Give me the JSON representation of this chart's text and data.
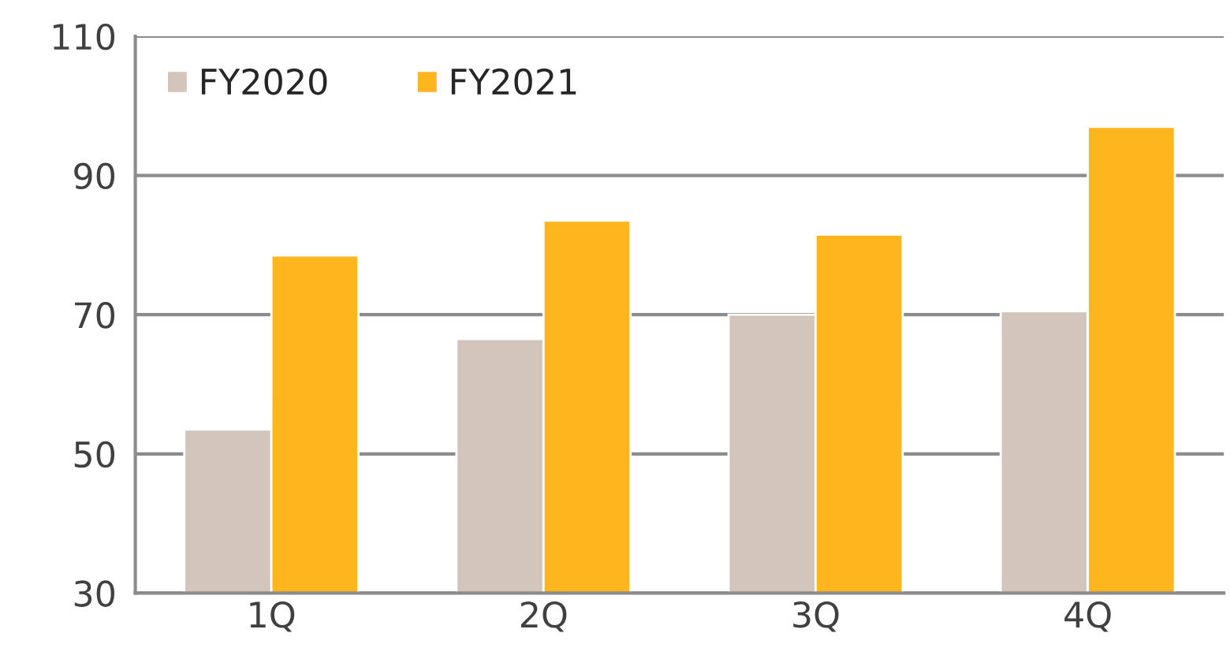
{
  "chart_data": {
    "type": "bar",
    "categories": [
      "1Q",
      "2Q",
      "3Q",
      "4Q"
    ],
    "series": [
      {
        "name": "FY2020",
        "color": "#d3c5bb",
        "values": [
          53.5,
          66.5,
          70,
          70.5
        ]
      },
      {
        "name": "FY2021",
        "color": "#ffb51e",
        "values": [
          78.5,
          83.5,
          81.5,
          97
        ]
      }
    ],
    "ylim": [
      30,
      110
    ],
    "yticks": [
      30,
      50,
      70,
      90,
      110
    ],
    "grid": "y",
    "legend": "top left"
  }
}
